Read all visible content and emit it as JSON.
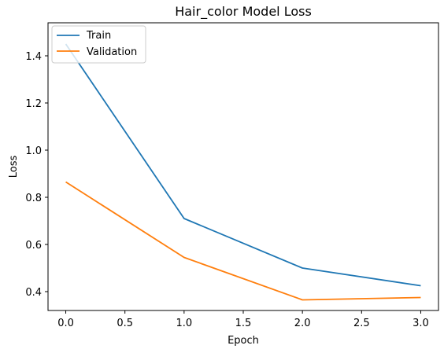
{
  "chart_data": {
    "type": "line",
    "title": "Hair_color Model Loss",
    "xlabel": "Epoch",
    "ylabel": "Loss",
    "x": [
      0,
      1,
      2,
      3
    ],
    "xlim": [
      -0.15,
      3.15
    ],
    "ylim": [
      0.32,
      1.54
    ],
    "xticks": [
      0.0,
      0.5,
      1.0,
      1.5,
      2.0,
      2.5,
      3.0
    ],
    "xtick_labels": [
      "0.0",
      "0.5",
      "1.0",
      "1.5",
      "2.0",
      "2.5",
      "3.0"
    ],
    "yticks": [
      0.4,
      0.6,
      0.8,
      1.0,
      1.2,
      1.4
    ],
    "ytick_labels": [
      "0.4",
      "0.6",
      "0.8",
      "1.0",
      "1.2",
      "1.4"
    ],
    "grid": false,
    "legend_position": "top-left",
    "series": [
      {
        "name": "Train",
        "color": "#1f77b4",
        "values": [
          1.45,
          0.71,
          0.5,
          0.425
        ]
      },
      {
        "name": "Validation",
        "color": "#ff7f0e",
        "values": [
          0.865,
          0.545,
          0.365,
          0.375
        ]
      }
    ]
  }
}
